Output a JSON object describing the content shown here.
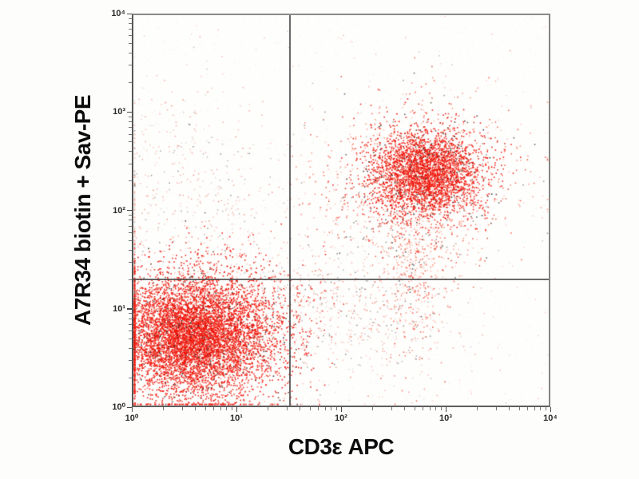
{
  "figure": {
    "background": "#fdfdfc",
    "frame_color": "#7a7a7a",
    "quadrant_line_color": "#484848",
    "tick_color": "#4a4a4a",
    "tick_label_color": "#2b2b2b",
    "axis_label_color": "#0c0c0c"
  },
  "chart_data": {
    "type": "scatter",
    "subtype": "flow-cytometry-dot-plot",
    "title": "",
    "xlabel": "CD3ε APC",
    "ylabel": "A7R34 biotin + Sav-PE",
    "x_scale": "log10",
    "y_scale": "log10",
    "x_decade_range": [
      0,
      4
    ],
    "y_decade_range": [
      0,
      4
    ],
    "x_tick_labels": [
      "10⁰",
      "10¹",
      "10²",
      "10³",
      "10⁴"
    ],
    "y_tick_labels": [
      "10⁰",
      "10¹",
      "10²",
      "10³",
      "10⁴"
    ],
    "grid": false,
    "legend": false,
    "quadrant_gate": {
      "x_log10": 1.5,
      "y_log10": 1.3
    },
    "dot_palettes": {
      "dense": [
        [
          "#f2140a",
          74
        ],
        [
          "#e03220",
          12
        ],
        [
          "#fb6e59",
          8
        ],
        [
          "#63362c",
          4
        ],
        [
          "#303030",
          2
        ]
      ],
      "halo": [
        [
          "#f4553f",
          30
        ],
        [
          "#f98b75",
          30
        ],
        [
          "#fbbdb0",
          22
        ],
        [
          "#d5402c",
          8
        ],
        [
          "#8d8d8d",
          6
        ],
        [
          "#4f4f4f",
          4
        ]
      ],
      "faint": [
        [
          "#f6b4a6",
          40
        ],
        [
          "#f19180",
          22
        ],
        [
          "#d9d2cf",
          14
        ],
        [
          "#a39d9a",
          12
        ],
        [
          "#ee6a52",
          7
        ],
        [
          "#6e6e6e",
          5
        ]
      ],
      "noise": [
        [
          "#c9c2bd",
          70
        ],
        [
          "#b1a9a4",
          20
        ],
        [
          "#e3b8ae",
          10
        ]
      ]
    },
    "populations": [
      {
        "name": "scan-noise",
        "uniform": true,
        "x_range": [
          0,
          4
        ],
        "y_range": [
          0,
          4
        ],
        "count": 1500,
        "palette": "noise",
        "alpha": 0.2,
        "size": 1.2
      },
      {
        "name": "upper-left-background",
        "center_log10": [
          0.55,
          1.95
        ],
        "sigma_log10": [
          0.5,
          0.62
        ],
        "count": 520,
        "palette": "faint",
        "alpha": 0.75,
        "size": 1.5
      },
      {
        "name": "sparse-uniform-background",
        "uniform": true,
        "x_range": [
          0,
          4
        ],
        "y_range": [
          0,
          3.9
        ],
        "count": 260,
        "palette": "faint",
        "alpha": 0.6,
        "size": 1.5
      },
      {
        "name": "lower-middle-background",
        "center_log10": [
          1.85,
          0.95
        ],
        "sigma_log10": [
          0.62,
          0.4
        ],
        "count": 700,
        "palette": "faint",
        "alpha": 0.8,
        "size": 1.5
      },
      {
        "name": "cd3pos-halo",
        "center_log10": [
          2.74,
          2.26
        ],
        "sigma_log10": [
          0.5,
          0.45
        ],
        "count": 950,
        "palette": "halo",
        "alpha": 0.85,
        "size": 1.6
      },
      {
        "name": "cd3pos-downward-tail",
        "center_log10": [
          2.7,
          1.5
        ],
        "sigma_log10": [
          0.17,
          0.55
        ],
        "count": 520,
        "palette": "halo",
        "alpha": 0.85,
        "size": 1.6
      },
      {
        "name": "double-positive-cluster",
        "center_log10": [
          2.81,
          2.38
        ],
        "sigma_log10": [
          0.27,
          0.22
        ],
        "count": 3200,
        "palette": "dense",
        "alpha": 0.92,
        "size": 1.6
      },
      {
        "name": "double-negative-cluster",
        "center_log10": [
          0.62,
          0.72
        ],
        "sigma_log10": [
          0.43,
          0.35
        ],
        "count": 5600,
        "palette": "dense",
        "alpha": 0.92,
        "size": 1.6
      },
      {
        "name": "double-negative-core",
        "center_log10": [
          0.55,
          0.72
        ],
        "sigma_log10": [
          0.27,
          0.23
        ],
        "count": 2000,
        "palette": "dense",
        "alpha": 0.95,
        "size": 1.6
      }
    ]
  }
}
